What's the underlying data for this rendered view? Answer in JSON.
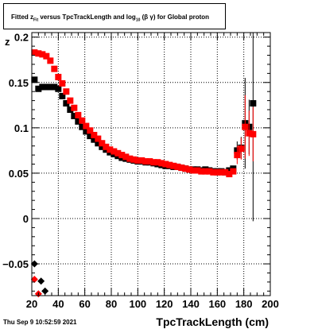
{
  "title": {
    "prefix": "Fitted  z",
    "sub_fit": "Fit",
    "middle": "  versus TpcTrackLength and log",
    "sub_10": "10",
    "suffix": " (β  γ) for Global proton"
  },
  "footer": "Thu Sep  9 10:52:59 2021",
  "chart_data": {
    "type": "scatter",
    "title": "Fitted  z_Fit  versus TpcTrackLength and log_10 (β  γ) for Global proton",
    "xlabel": "TpcTrackLength (cm)",
    "ylabel": "z",
    "xlim": [
      20,
      200
    ],
    "ylim": [
      -0.085,
      0.205
    ],
    "xticks": [
      20,
      40,
      60,
      80,
      100,
      120,
      140,
      160,
      180,
      200
    ],
    "yticks": [
      -0.05,
      0,
      0.05,
      0.1,
      0.15,
      0.2
    ],
    "ytick_labels": [
      "−0.05",
      "0",
      "0.05",
      "0.1",
      "0.15",
      "0.2"
    ],
    "grid": true,
    "series": [
      {
        "color": "#000000",
        "x": [
          22,
          25,
          28,
          31,
          34,
          37,
          40,
          43,
          46,
          49,
          52,
          55,
          58,
          61,
          64,
          67,
          70,
          73,
          76,
          79,
          82,
          85,
          88,
          91,
          94,
          97,
          100,
          103,
          106,
          109,
          112,
          115,
          118,
          121,
          124,
          127,
          130,
          133,
          136,
          139,
          142,
          145,
          148,
          151,
          154,
          157,
          160,
          163,
          166,
          169,
          172,
          175,
          178,
          181,
          184,
          187
        ],
        "y": [
          0.153,
          0.143,
          0.145,
          0.145,
          0.145,
          0.145,
          0.143,
          0.135,
          0.127,
          0.12,
          0.113,
          0.107,
          0.101,
          0.096,
          0.091,
          0.087,
          0.083,
          0.079,
          0.076,
          0.073,
          0.071,
          0.069,
          0.067,
          0.066,
          0.065,
          0.064,
          0.063,
          0.063,
          0.062,
          0.062,
          0.061,
          0.06,
          0.059,
          0.058,
          0.058,
          0.057,
          0.057,
          0.056,
          0.055,
          0.054,
          0.054,
          0.054,
          0.053,
          0.054,
          0.053,
          0.052,
          0.052,
          0.052,
          0.051,
          0.053,
          0.055,
          0.075,
          0.078,
          0.105,
          0.101,
          0.127
        ],
        "err": [
          0.002,
          0.002,
          0.002,
          0.002,
          0.002,
          0.002,
          0.002,
          0.002,
          0.002,
          0.002,
          0.002,
          0.002,
          0.002,
          0.002,
          0.002,
          0.002,
          0.002,
          0.002,
          0.002,
          0.002,
          0.002,
          0.002,
          0.002,
          0.002,
          0.002,
          0.002,
          0.002,
          0.002,
          0.002,
          0.002,
          0.002,
          0.002,
          0.002,
          0.002,
          0.002,
          0.002,
          0.002,
          0.002,
          0.002,
          0.002,
          0.002,
          0.002,
          0.002,
          0.002,
          0.002,
          0.002,
          0.002,
          0.002,
          0.002,
          0.002,
          0.003,
          0.01,
          0.012,
          0.05,
          0.03,
          0.13
        ]
      },
      {
        "color": "#ff0000",
        "x": [
          22,
          25,
          28,
          31,
          34,
          37,
          40,
          43,
          46,
          49,
          52,
          55,
          58,
          61,
          64,
          67,
          70,
          73,
          76,
          79,
          82,
          85,
          88,
          91,
          94,
          97,
          100,
          103,
          106,
          109,
          112,
          115,
          118,
          121,
          124,
          127,
          130,
          133,
          136,
          139,
          142,
          145,
          148,
          151,
          154,
          157,
          160,
          163,
          166,
          169,
          172,
          175,
          178,
          181,
          184,
          187
        ],
        "y": [
          0.183,
          0.182,
          0.181,
          0.179,
          0.174,
          0.165,
          0.156,
          0.149,
          0.14,
          0.13,
          0.122,
          0.114,
          0.108,
          0.102,
          0.097,
          0.092,
          0.088,
          0.083,
          0.079,
          0.076,
          0.074,
          0.072,
          0.07,
          0.068,
          0.066,
          0.065,
          0.064,
          0.064,
          0.063,
          0.063,
          0.062,
          0.062,
          0.061,
          0.06,
          0.059,
          0.058,
          0.057,
          0.056,
          0.055,
          0.054,
          0.053,
          0.053,
          0.052,
          0.052,
          0.052,
          0.051,
          0.051,
          0.051,
          0.051,
          0.049,
          0.052,
          0.07,
          0.077,
          0.101,
          0.094,
          0.093
        ],
        "err": [
          0.002,
          0.002,
          0.002,
          0.002,
          0.002,
          0.002,
          0.002,
          0.002,
          0.002,
          0.002,
          0.002,
          0.002,
          0.002,
          0.002,
          0.002,
          0.002,
          0.002,
          0.002,
          0.002,
          0.002,
          0.002,
          0.002,
          0.002,
          0.002,
          0.002,
          0.002,
          0.002,
          0.002,
          0.002,
          0.002,
          0.002,
          0.002,
          0.002,
          0.002,
          0.002,
          0.002,
          0.002,
          0.002,
          0.002,
          0.002,
          0.002,
          0.002,
          0.002,
          0.002,
          0.002,
          0.002,
          0.002,
          0.002,
          0.002,
          0.002,
          0.003,
          0.01,
          0.012,
          0.035,
          0.025,
          0.03
        ]
      }
    ],
    "low_points": [
      {
        "x": 22,
        "y": -0.05,
        "color": "#000000"
      },
      {
        "x": 27,
        "y": -0.069,
        "color": "#000000"
      },
      {
        "x": 30,
        "y": -0.08,
        "color": "#000000"
      },
      {
        "x": 22,
        "y": -0.067,
        "color": "#ff0000"
      },
      {
        "x": 25,
        "y": -0.083,
        "color": "#ff0000"
      }
    ]
  }
}
